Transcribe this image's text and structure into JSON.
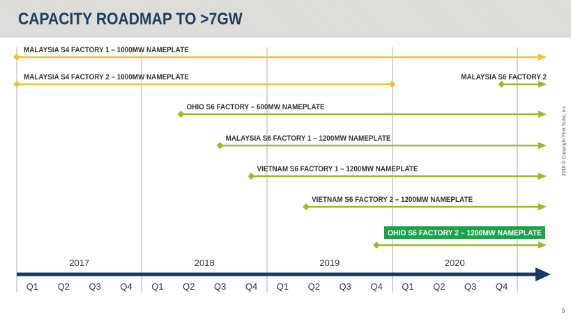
{
  "header": {
    "title": "CAPACITY ROADMAP TO >7GW"
  },
  "colors": {
    "header_bg": "#d9d9d6",
    "title": "#1f3c5b",
    "s4_bar": "#f2c12e",
    "s6_bar": "#a3b52a",
    "highlight_bg": "#1aa34a",
    "timeline": "#163a5f",
    "gridline": "#9a9a9a"
  },
  "timeline": {
    "years": [
      "2017",
      "2018",
      "2019",
      "2020"
    ],
    "quarters": [
      "Q1",
      "Q2",
      "Q3",
      "Q4"
    ]
  },
  "bars": [
    {
      "label": "MALAYSIA S4 FACTORY 1 – 1000MW NAMEPLATE",
      "type": "s4",
      "start_q": 0,
      "end_q": 16
    },
    {
      "label": "MALAYSIA S4 FACTORY 2 – 1000MW NAMEPLATE",
      "type": "s4",
      "start_q": 0,
      "end_q": 12,
      "end_marker": true
    },
    {
      "label": "MALAYSIA S6 FACTORY 2",
      "type": "s6",
      "start_q": 15.5,
      "end_q": 16,
      "label_align": "right"
    },
    {
      "label": "OHIO S6 FACTORY – 600MW NAMEPLATE",
      "type": "s6",
      "start_q": 5.25,
      "end_q": 16
    },
    {
      "label": "MALAYSIA S6 FACTORY 1 – 1200MW NAMEPLATE",
      "type": "s6",
      "start_q": 6.5,
      "end_q": 16
    },
    {
      "label": "VIETNAM S6 FACTORY 1 – 1200MW NAMEPLATE",
      "type": "s6",
      "start_q": 7.5,
      "end_q": 16
    },
    {
      "label": "VIETNAM S6 FACTORY 2 – 1200MW NAMEPLATE",
      "type": "s6",
      "start_q": 9.25,
      "end_q": 16
    },
    {
      "label": "OHIO S6 FACTORY 2 – 1200MW NAMEPLATE",
      "type": "s6",
      "start_q": 11.5,
      "end_q": 16,
      "highlight": true
    }
  ],
  "footer": {
    "copyright": "2016 © Copyright First Solar, Inc.",
    "page": "5"
  }
}
